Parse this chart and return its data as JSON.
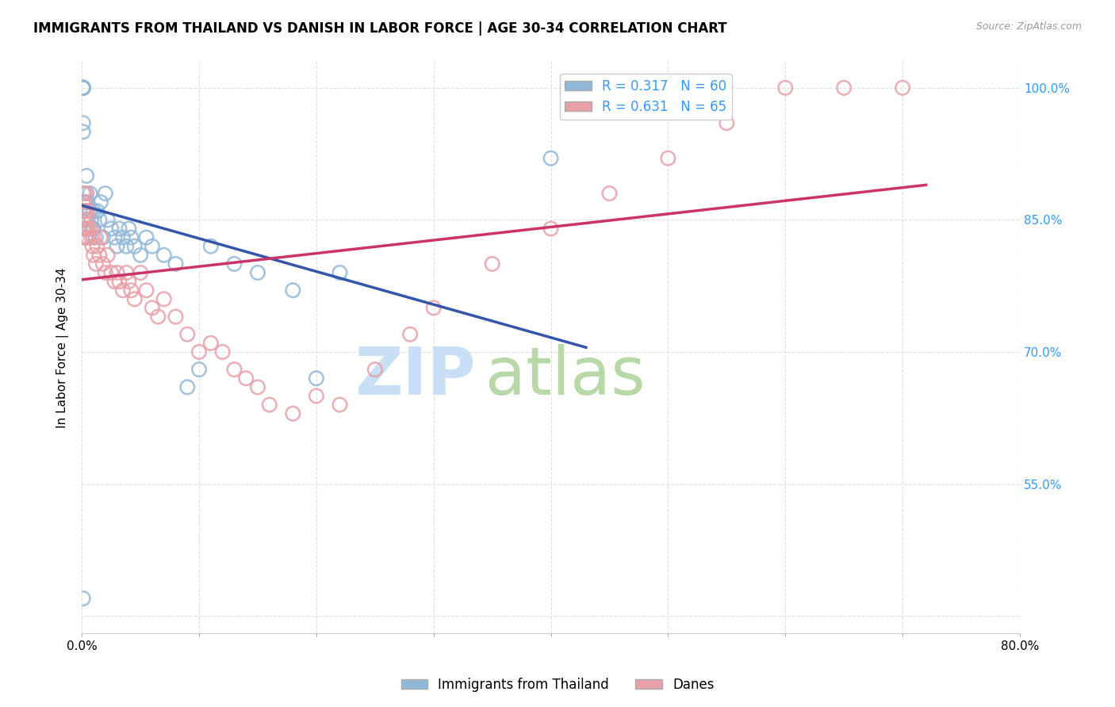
{
  "title": "IMMIGRANTS FROM THAILAND VS DANISH IN LABOR FORCE | AGE 30-34 CORRELATION CHART",
  "source": "Source: ZipAtlas.com",
  "ylabel": "In Labor Force | Age 30-34",
  "xlim": [
    0.0,
    0.8
  ],
  "ylim": [
    0.38,
    1.03
  ],
  "xticks": [
    0.0,
    0.1,
    0.2,
    0.3,
    0.4,
    0.5,
    0.6,
    0.7,
    0.8
  ],
  "xticklabels": [
    "0.0%",
    "",
    "",
    "",
    "",
    "",
    "",
    "",
    "80.0%"
  ],
  "yticks": [
    0.4,
    0.55,
    0.7,
    0.85,
    1.0
  ],
  "yticklabels": [
    "",
    "55.0%",
    "70.0%",
    "85.0%",
    "100.0%"
  ],
  "legend_blue_label": "R = 0.317   N = 60",
  "legend_pink_label": "R = 0.631   N = 65",
  "legend_blue_series": "Immigrants from Thailand",
  "legend_pink_series": "Danes",
  "blue_color": "#92b8d8",
  "pink_color": "#e8a0a8",
  "blue_line_color": "#3355aa",
  "pink_line_color": "#cc3366",
  "grid_color": "#dddddd",
  "right_tick_color": "#3399ff",
  "watermark_zip": "ZIP",
  "watermark_atlas": "atlas",
  "watermark_color_zip": "#c8dff5",
  "watermark_color_atlas": "#b8d8a8",
  "blue_x": [
    0.001,
    0.001,
    0.001,
    0.001,
    0.001,
    0.001,
    0.001,
    0.001,
    0.001,
    0.001,
    0.002,
    0.002,
    0.002,
    0.002,
    0.003,
    0.003,
    0.003,
    0.003,
    0.004,
    0.004,
    0.005,
    0.005,
    0.005,
    0.007,
    0.007,
    0.008,
    0.009,
    0.01,
    0.01,
    0.012,
    0.013,
    0.015,
    0.016,
    0.018,
    0.02,
    0.022,
    0.025,
    0.028,
    0.03,
    0.032,
    0.035,
    0.038,
    0.04,
    0.042,
    0.045,
    0.05,
    0.055,
    0.06,
    0.07,
    0.08,
    0.09,
    0.1,
    0.11,
    0.13,
    0.15,
    0.18,
    0.2,
    0.22,
    0.4,
    0.001
  ],
  "blue_y": [
    1.0,
    1.0,
    1.0,
    1.0,
    1.0,
    1.0,
    1.0,
    1.0,
    0.96,
    0.95,
    0.88,
    0.87,
    0.86,
    0.85,
    0.86,
    0.87,
    0.84,
    0.83,
    0.9,
    0.88,
    0.87,
    0.85,
    0.84,
    0.88,
    0.86,
    0.85,
    0.84,
    0.86,
    0.84,
    0.83,
    0.86,
    0.85,
    0.87,
    0.83,
    0.88,
    0.85,
    0.84,
    0.83,
    0.82,
    0.84,
    0.83,
    0.82,
    0.84,
    0.83,
    0.82,
    0.81,
    0.83,
    0.82,
    0.81,
    0.8,
    0.66,
    0.68,
    0.82,
    0.8,
    0.79,
    0.77,
    0.67,
    0.79,
    0.92,
    0.42
  ],
  "pink_x": [
    0.001,
    0.001,
    0.001,
    0.001,
    0.001,
    0.002,
    0.002,
    0.002,
    0.003,
    0.003,
    0.003,
    0.004,
    0.004,
    0.005,
    0.005,
    0.005,
    0.007,
    0.008,
    0.009,
    0.01,
    0.01,
    0.012,
    0.013,
    0.015,
    0.016,
    0.018,
    0.02,
    0.022,
    0.025,
    0.028,
    0.03,
    0.032,
    0.035,
    0.038,
    0.04,
    0.042,
    0.045,
    0.05,
    0.055,
    0.06,
    0.065,
    0.07,
    0.08,
    0.09,
    0.1,
    0.11,
    0.12,
    0.13,
    0.14,
    0.15,
    0.16,
    0.18,
    0.2,
    0.22,
    0.25,
    0.28,
    0.3,
    0.35,
    0.4,
    0.45,
    0.5,
    0.55,
    0.6,
    0.65,
    0.7
  ],
  "pink_y": [
    0.88,
    0.87,
    0.86,
    0.85,
    0.84,
    0.87,
    0.86,
    0.84,
    0.86,
    0.84,
    0.83,
    0.88,
    0.85,
    0.84,
    0.86,
    0.83,
    0.84,
    0.83,
    0.82,
    0.83,
    0.81,
    0.8,
    0.82,
    0.81,
    0.83,
    0.8,
    0.79,
    0.81,
    0.79,
    0.78,
    0.79,
    0.78,
    0.77,
    0.79,
    0.78,
    0.77,
    0.76,
    0.79,
    0.77,
    0.75,
    0.74,
    0.76,
    0.74,
    0.72,
    0.7,
    0.71,
    0.7,
    0.68,
    0.67,
    0.66,
    0.64,
    0.63,
    0.65,
    0.64,
    0.68,
    0.72,
    0.75,
    0.8,
    0.84,
    0.88,
    0.92,
    0.96,
    1.0,
    1.0,
    1.0
  ]
}
